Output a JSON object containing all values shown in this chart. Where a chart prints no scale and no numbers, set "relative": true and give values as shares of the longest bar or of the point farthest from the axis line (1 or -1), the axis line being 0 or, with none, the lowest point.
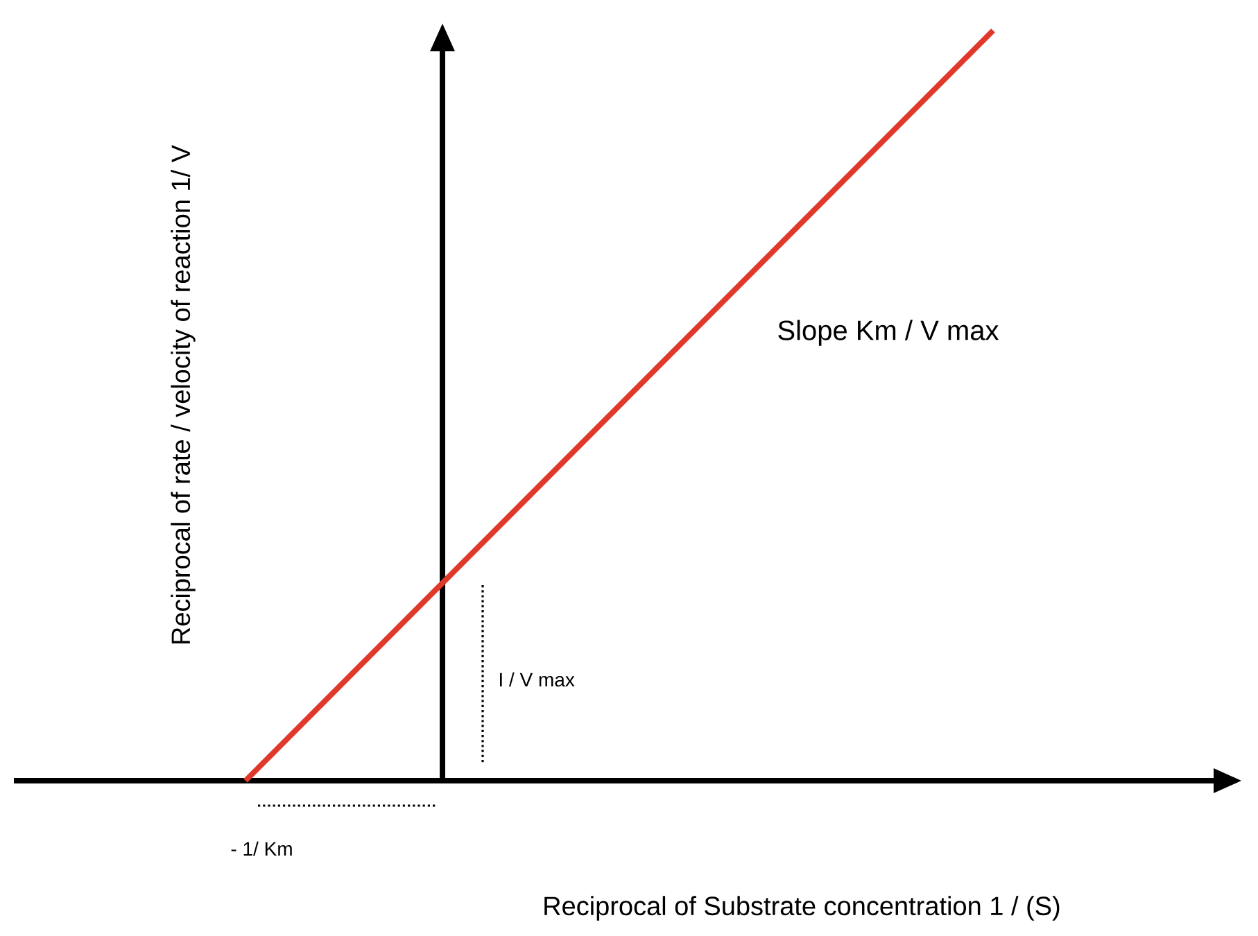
{
  "chart_data": {
    "type": "line",
    "relative": true,
    "xlabel": "Reciprocal of Substrate concentration 1 / (S)",
    "ylabel": "Reciprocal of rate / velocity of reaction 1/ V",
    "categories": [
      null,
      null
    ],
    "values": [
      0,
      1
    ],
    "color": "#e0392b",
    "annotations": [
      "- 1/ Km",
      "I / V max",
      "Slope Km / V max"
    ]
  }
}
